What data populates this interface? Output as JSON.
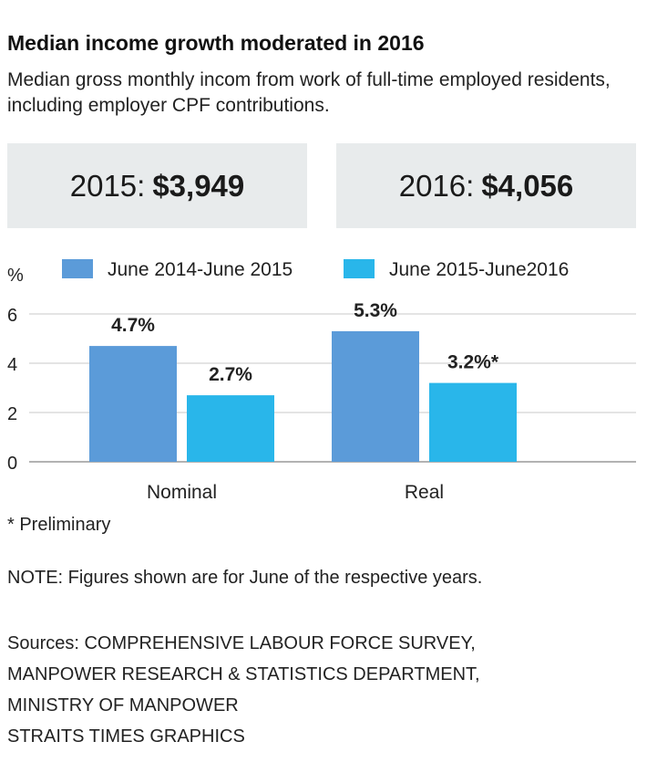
{
  "header": {
    "title": "Median income growth moderated in 2016",
    "subtitle": "Median gross monthly incom from work of full-time employed residents, including employer CPF contributions."
  },
  "summary": [
    {
      "label": "2015:",
      "amount": "$3,949"
    },
    {
      "label": "2016:",
      "amount": "$4,056"
    }
  ],
  "chart_data": {
    "type": "bar",
    "categories": [
      "Nominal",
      "Real"
    ],
    "ylabel": "%",
    "ylim": [
      0,
      6
    ],
    "yticks": [
      0,
      2,
      4,
      6
    ],
    "grid": true,
    "legend": "top",
    "series": [
      {
        "name": "June 2014-June 2015",
        "values": [
          4.7,
          5.3
        ],
        "labels": [
          "4.7%",
          "5.3%"
        ],
        "color": "#5b9bd9"
      },
      {
        "name": "June 2015-June2016",
        "values": [
          2.7,
          3.2
        ],
        "labels": [
          "2.7%",
          "3.2%*"
        ],
        "color": "#29b6ea"
      }
    ]
  },
  "footnotes": {
    "preliminary": "* Preliminary",
    "note": "NOTE: Figures shown are for June of the respective years."
  },
  "sources": [
    "Sources: COMPREHENSIVE LABOUR FORCE SURVEY,",
    "MANPOWER RESEARCH & STATISTICS DEPARTMENT,",
    "MINISTRY OF MANPOWER",
    "STRAITS TIMES GRAPHICS"
  ]
}
